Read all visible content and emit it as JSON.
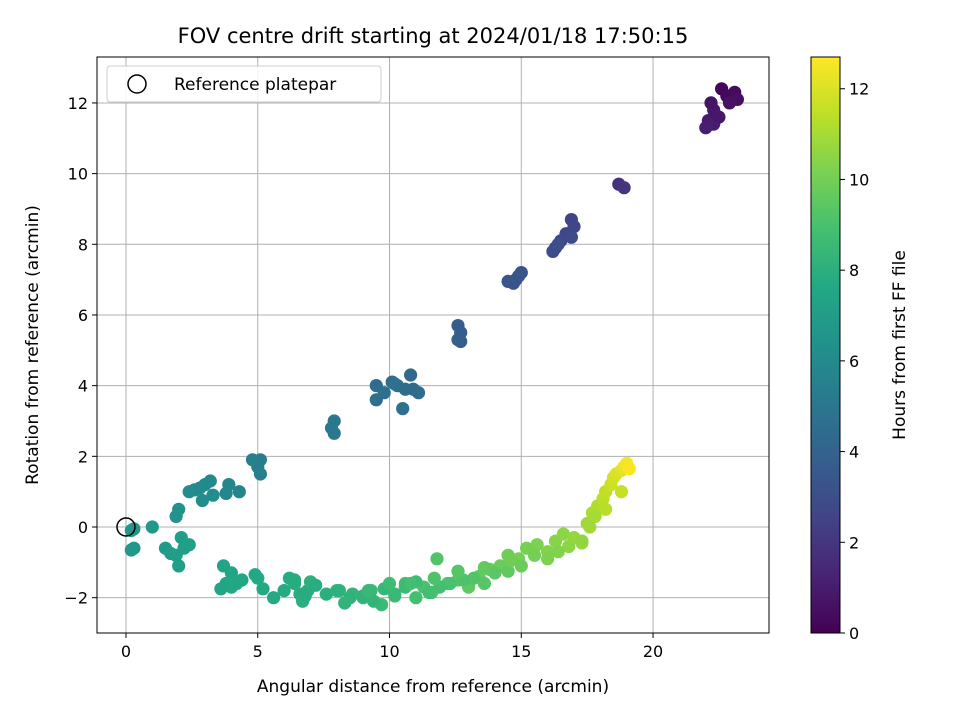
{
  "chart_data": {
    "type": "scatter",
    "title": "FOV centre drift starting at 2024/01/18 17:50:15",
    "xlabel": "Angular distance from reference (arcmin)",
    "ylabel": "Rotation from reference (arcmin)",
    "xlim": [
      -1.1,
      24.4
    ],
    "ylim": [
      -3.0,
      13.3
    ],
    "xticks": [
      0,
      5,
      10,
      15,
      20
    ],
    "yticks": [
      -2,
      0,
      2,
      4,
      6,
      8,
      10,
      12
    ],
    "grid": true,
    "colorbar": {
      "label": "Hours from first FF file",
      "range": [
        0,
        12.7
      ],
      "ticks": [
        0,
        2,
        4,
        6,
        8,
        10,
        12
      ],
      "colormap": "viridis"
    },
    "legend": {
      "position": "upper-left",
      "entries": [
        {
          "label": "Reference platepar",
          "marker": "hollow-circle"
        }
      ]
    },
    "reference": {
      "x": 0,
      "y": 0,
      "label": "Reference platepar"
    },
    "series": [
      {
        "name": "",
        "x": [
          22.6,
          22.8,
          23.1,
          23.2,
          22.9,
          22.3,
          22.1,
          22.3,
          22.0,
          22.2,
          22.5,
          18.7,
          18.9,
          16.9,
          17.0,
          16.7,
          16.5,
          16.9,
          16.3,
          16.2,
          16.4,
          15.0,
          14.8,
          14.7,
          14.5,
          14.9,
          12.6,
          12.7,
          12.6,
          12.7,
          10.8,
          10.9,
          10.1,
          10.3,
          9.5,
          9.5,
          9.8,
          10.6,
          11.1,
          10.5,
          10.2,
          7.8,
          7.9,
          7.9,
          5.1,
          5.0,
          4.8,
          5.1,
          4.3,
          3.9,
          3.8,
          3.2,
          3.0,
          2.8,
          2.6,
          2.4,
          2.9,
          3.3,
          1.9,
          2.0,
          0.3,
          0.2,
          0.3,
          0.2,
          1.0,
          1.5,
          1.7,
          1.9,
          2.1,
          2.4,
          2.2,
          2.0,
          3.7,
          4.0,
          4.2,
          3.8,
          5.0,
          5.2,
          6.2,
          6.6,
          6.9,
          6.4,
          6.7,
          7.0,
          8.0,
          8.6,
          9.0,
          9.3,
          9.7,
          10.2,
          10.6,
          11.0,
          11.3,
          11.6,
          11.8,
          12.2,
          12.6,
          13.0,
          13.4,
          13.8,
          14.2,
          14.5,
          14.9,
          15.2,
          15.6,
          16.0,
          16.3,
          16.6,
          17.0,
          17.3,
          17.5,
          17.7,
          17.9,
          18.1,
          18.2,
          18.4,
          18.5,
          18.6,
          18.8,
          18.9,
          19.0,
          19.1,
          18.8,
          18.2,
          17.8,
          17.6,
          17.3,
          16.8,
          16.4,
          16.0,
          15.5,
          15.0,
          14.5,
          14.0,
          13.6,
          13.2,
          12.8,
          12.3,
          11.9,
          11.5,
          11.0,
          10.6,
          10.2,
          9.8,
          9.4,
          9.0,
          8.5,
          8.1,
          7.6,
          7.2,
          6.8,
          6.4,
          6.0,
          5.6,
          4.9,
          4.4,
          4.0,
          3.6,
          8.3,
          9.2,
          10.0,
          10.8,
          11.7,
          12.6,
          13.6,
          14.6
        ],
        "y": [
          12.4,
          12.2,
          12.3,
          12.1,
          12.0,
          11.8,
          11.5,
          11.4,
          11.3,
          12.0,
          11.6,
          9.7,
          9.6,
          8.7,
          8.5,
          8.3,
          8.1,
          8.2,
          7.9,
          7.8,
          8.0,
          7.2,
          7.0,
          6.9,
          6.95,
          7.1,
          5.7,
          5.5,
          5.3,
          5.25,
          4.3,
          3.9,
          4.1,
          4.0,
          4.0,
          3.6,
          3.8,
          3.9,
          3.8,
          3.35,
          4.05,
          2.8,
          2.65,
          3.0,
          1.9,
          1.7,
          1.9,
          1.5,
          1.0,
          1.2,
          0.95,
          1.3,
          1.2,
          1.1,
          1.05,
          1.0,
          0.75,
          0.9,
          0.3,
          0.5,
          -0.05,
          -0.1,
          -0.6,
          -0.65,
          0.0,
          -0.6,
          -0.75,
          -0.8,
          -0.3,
          -0.5,
          -0.6,
          -1.1,
          -1.1,
          -1.3,
          -1.6,
          -1.6,
          -1.45,
          -1.75,
          -1.45,
          -1.9,
          -1.8,
          -1.6,
          -2.1,
          -1.55,
          -1.8,
          -1.9,
          -2.0,
          -1.8,
          -2.2,
          -1.95,
          -1.6,
          -2.0,
          -1.7,
          -1.85,
          -0.9,
          -1.6,
          -1.5,
          -1.7,
          -1.4,
          -1.2,
          -1.1,
          -0.8,
          -0.9,
          -0.6,
          -0.5,
          -0.7,
          -0.4,
          -0.2,
          -0.3,
          -0.45,
          0.1,
          0.4,
          0.6,
          0.8,
          1.0,
          1.2,
          1.4,
          1.5,
          1.6,
          1.7,
          1.8,
          1.65,
          1.0,
          0.5,
          0.3,
          0.0,
          -0.4,
          -0.55,
          -0.7,
          -0.9,
          -0.8,
          -1.1,
          -1.25,
          -1.3,
          -1.6,
          -1.45,
          -1.5,
          -1.6,
          -1.7,
          -1.85,
          -1.55,
          -1.7,
          -1.9,
          -1.75,
          -2.1,
          -1.95,
          -2.0,
          -1.8,
          -1.9,
          -1.65,
          -1.95,
          -1.5,
          -1.8,
          -2.0,
          -1.35,
          -1.5,
          -1.7,
          -1.75,
          -2.15,
          -1.8,
          -1.6,
          -1.6,
          -1.45,
          -1.25,
          -1.15,
          -0.95
        ],
        "hours": [
          0.2,
          0.3,
          0.4,
          0.5,
          0.6,
          0.8,
          0.9,
          1.0,
          1.1,
          0.7,
          0.85,
          1.8,
          1.9,
          2.6,
          2.65,
          2.7,
          2.75,
          2.8,
          2.9,
          2.95,
          3.0,
          3.2,
          3.25,
          3.3,
          3.35,
          3.4,
          3.7,
          3.75,
          3.8,
          3.85,
          4.3,
          4.35,
          4.4,
          4.45,
          4.5,
          4.55,
          4.6,
          4.4,
          4.5,
          4.65,
          4.7,
          5.0,
          5.05,
          5.1,
          5.4,
          5.45,
          5.5,
          5.55,
          5.7,
          5.75,
          5.8,
          5.9,
          5.95,
          6.0,
          6.05,
          6.1,
          6.15,
          6.2,
          6.4,
          6.45,
          6.6,
          6.65,
          6.7,
          6.75,
          6.8,
          6.9,
          6.95,
          7.0,
          7.05,
          7.1,
          7.15,
          7.2,
          7.4,
          7.45,
          7.5,
          7.55,
          7.65,
          7.7,
          7.8,
          7.85,
          7.9,
          7.95,
          8.0,
          8.05,
          8.2,
          8.3,
          8.4,
          8.5,
          8.6,
          8.7,
          8.8,
          8.9,
          9.0,
          9.1,
          9.2,
          9.3,
          9.4,
          9.5,
          9.6,
          9.7,
          9.8,
          9.9,
          10.0,
          10.1,
          10.2,
          10.3,
          10.4,
          10.5,
          10.7,
          10.8,
          10.9,
          11.1,
          11.2,
          11.4,
          11.5,
          11.7,
          11.8,
          11.9,
          12.1,
          12.3,
          12.5,
          12.6,
          11.6,
          11.3,
          11.0,
          10.9,
          10.6,
          10.5,
          10.3,
          10.2,
          10.0,
          9.8,
          9.6,
          9.4,
          9.3,
          9.2,
          9.1,
          9.0,
          8.9,
          8.8,
          8.7,
          8.6,
          8.5,
          8.4,
          8.3,
          8.25,
          8.15,
          8.1,
          8.0,
          7.9,
          7.85,
          7.8,
          7.75,
          7.7,
          7.6,
          7.55,
          7.5,
          7.45,
          8.2,
          8.5,
          8.7,
          8.9,
          9.1,
          9.3,
          9.6,
          9.9
        ]
      }
    ]
  }
}
